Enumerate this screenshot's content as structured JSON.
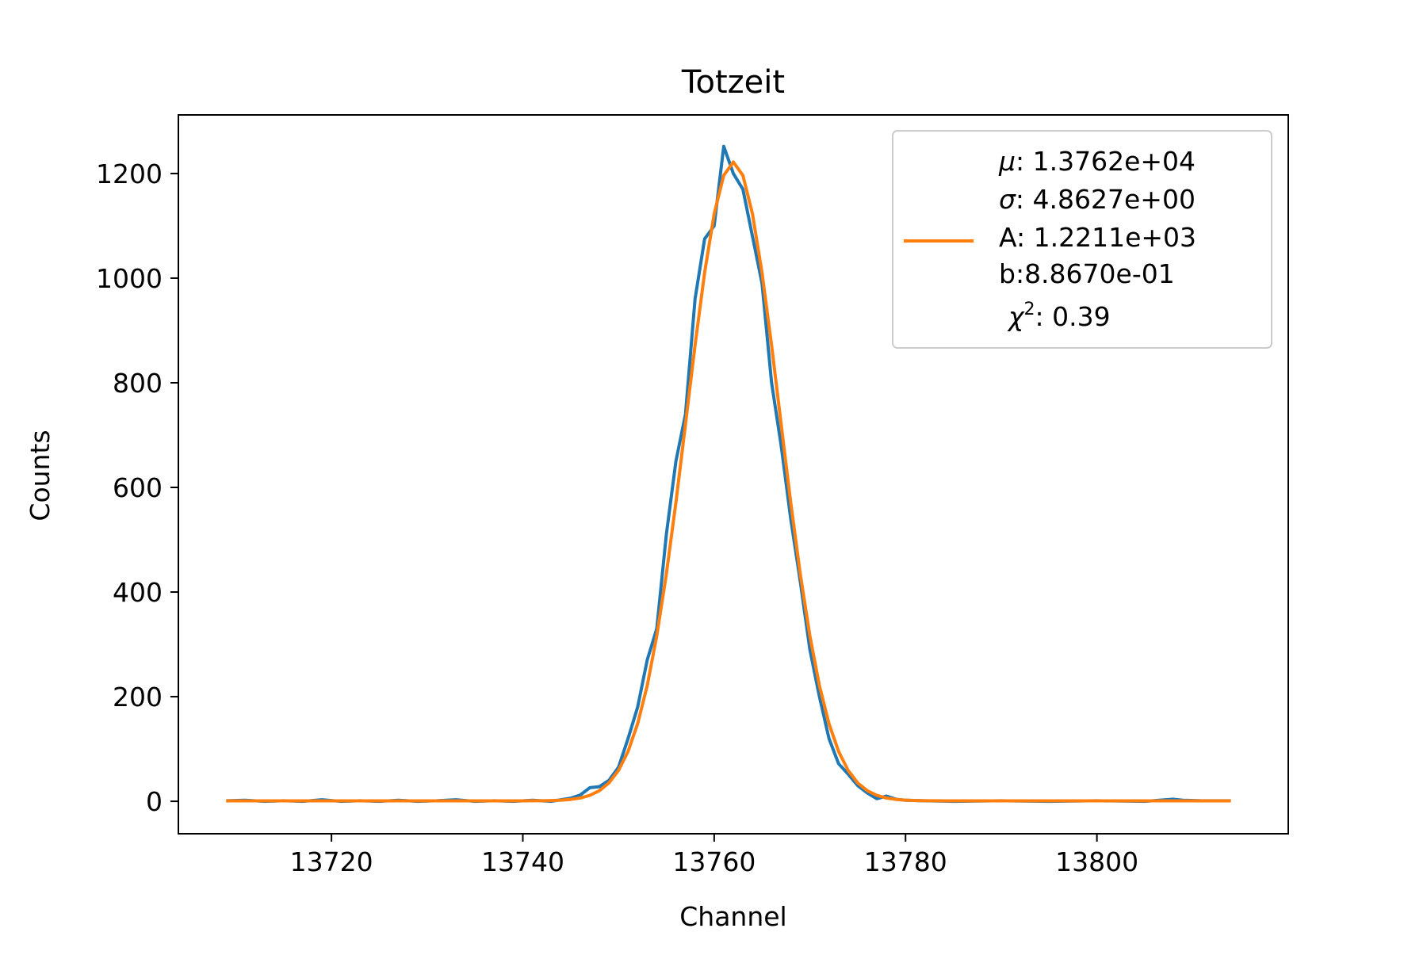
{
  "chart_data": {
    "type": "line",
    "title": "Totzeit",
    "xlabel": "Channel",
    "ylabel": "Counts",
    "xlim": [
      13704,
      13820
    ],
    "ylim": [
      -62,
      1312
    ],
    "xticks": [
      "13720",
      "13740",
      "13760",
      "13780",
      "13800"
    ],
    "yticks": [
      "0",
      "200",
      "400",
      "600",
      "800",
      "1000",
      "1200"
    ],
    "grid": false,
    "legend_position": "top-right",
    "legend": {
      "lines": [
        "μ: 1.3762e+04",
        "σ: 4.8627e+00",
        "A: 1.2211e+03",
        "b:8.8670e-01",
        "χ²: 0.39"
      ]
    },
    "series": [
      {
        "color": "#1f77b4",
        "x": [
          13709,
          13711,
          13713,
          13715,
          13717,
          13719,
          13721,
          13723,
          13725,
          13727,
          13729,
          13731,
          13733,
          13735,
          13737,
          13739,
          13741,
          13743,
          13744,
          13745,
          13746,
          13747,
          13748,
          13749,
          13750,
          13751,
          13752,
          13753,
          13754,
          13755,
          13756,
          13757,
          13758,
          13759,
          13760,
          13761,
          13762,
          13763,
          13764,
          13765,
          13766,
          13767,
          13768,
          13769,
          13770,
          13771,
          13772,
          13773,
          13774,
          13775,
          13776,
          13777,
          13778,
          13779,
          13780,
          13782,
          13785,
          13790,
          13795,
          13800,
          13805,
          13808,
          13809,
          13811,
          13814
        ],
        "y": [
          1,
          2,
          0,
          1,
          0,
          3,
          0,
          1,
          0,
          2,
          0,
          1,
          3,
          0,
          1,
          0,
          2,
          0,
          3,
          6,
          12,
          26,
          28,
          40,
          65,
          120,
          180,
          270,
          330,
          510,
          650,
          740,
          960,
          1075,
          1100,
          1252,
          1200,
          1170,
          1080,
          990,
          800,
          680,
          540,
          420,
          290,
          200,
          120,
          72,
          52,
          30,
          16,
          5,
          10,
          4,
          2,
          1,
          0,
          1,
          0,
          1,
          0,
          4,
          2,
          1,
          1
        ]
      },
      {
        "name": "μ: 1.3762e+04\nσ: 4.8627e+00\nA: 1.2211e+03\nb:8.8670e-01\nχ²: 0.39",
        "color": "#ff7f0e",
        "fit": {
          "mu": 13762,
          "sigma": 4.8627,
          "A": 1221.1,
          "b": 0.8867,
          "x_range": [
            13709,
            13814
          ]
        }
      }
    ]
  }
}
